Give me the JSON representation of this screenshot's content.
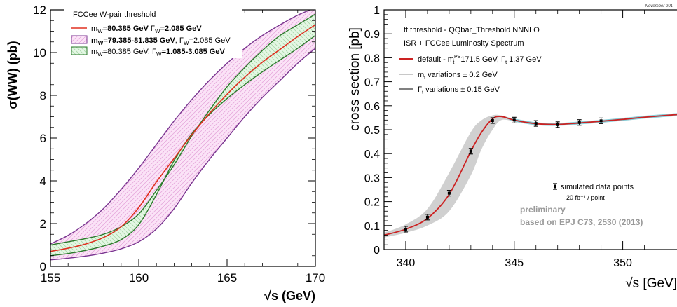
{
  "chart_data": [
    {
      "type": "area",
      "title": "",
      "xlabel": "√s (GeV)",
      "ylabel": "σ(WW) (pb)",
      "xlim": [
        155,
        170
      ],
      "ylim": [
        0,
        12
      ],
      "x_ticks": [
        "155",
        "160",
        "165",
        "170"
      ],
      "y_ticks": [
        "0",
        "2",
        "4",
        "6",
        "8",
        "10",
        "12"
      ],
      "grid": false,
      "legend": {
        "placement": "top-left",
        "title": "FCCee W-pair threshold",
        "entries": [
          {
            "label": "mW=80.385 GeV   ΓW=2.085 GeV",
            "color": "#e03020"
          },
          {
            "label": "mW=79.385-81.835 GeV,  ΓW=2.085 GeV",
            "color": "#7a3590"
          },
          {
            "label": "mW=80.385 GeV,  ΓW=1.085-3.085 GeV",
            "color": "#2a7a2a"
          }
        ]
      },
      "x": [
        155,
        156,
        157,
        158,
        159,
        160,
        161,
        162,
        163,
        164,
        165,
        166,
        167,
        168,
        169,
        170
      ],
      "series": [
        {
          "name": "mW=80.385 GeV   ΓW=2.085 GeV",
          "color": "#e03020",
          "values": [
            0.7,
            0.85,
            1.05,
            1.35,
            1.85,
            2.75,
            3.95,
            5.05,
            6.15,
            7.15,
            8.05,
            8.85,
            9.55,
            10.15,
            10.75,
            11.3
          ]
        },
        {
          "name": "mW=79.385-81.835 GeV upper",
          "color": "#7a3590",
          "values": [
            1.05,
            1.45,
            2.0,
            2.7,
            3.6,
            4.6,
            5.7,
            6.8,
            7.8,
            8.7,
            9.5,
            10.2,
            10.8,
            11.3,
            11.75,
            12.1
          ]
        },
        {
          "name": "mW=79.385-81.835 GeV lower",
          "color": "#7a3590",
          "values": [
            0.3,
            0.38,
            0.48,
            0.62,
            0.82,
            1.15,
            1.75,
            2.7,
            3.9,
            5.0,
            6.0,
            7.0,
            7.9,
            8.7,
            9.5,
            10.2
          ]
        },
        {
          "name": "ΓW=1.085-3.085 GeV upper",
          "color": "#2a7a2a",
          "values": [
            1.0,
            1.15,
            1.3,
            1.5,
            1.85,
            2.45,
            3.55,
            4.75,
            6.1,
            7.3,
            8.4,
            9.3,
            10.1,
            10.8,
            11.3,
            11.8
          ]
        },
        {
          "name": "ΓW=1.085-3.085 GeV lower",
          "color": "#2a7a2a",
          "values": [
            0.5,
            0.6,
            0.75,
            0.95,
            1.25,
            1.95,
            3.35,
            4.95,
            6.2,
            7.1,
            7.85,
            8.5,
            9.1,
            9.65,
            10.2,
            10.8
          ]
        }
      ]
    },
    {
      "type": "line",
      "title": "",
      "corner_note": "November 201",
      "xlabel": "√s [GeV]",
      "ylabel": "cross section [pb]",
      "xlim": [
        339,
        352.5
      ],
      "ylim": [
        0,
        1
      ],
      "x_ticks": [
        "340",
        "345",
        "350"
      ],
      "y_ticks": [
        "0",
        "0.1",
        "0.2",
        "0.3",
        "0.4",
        "0.5",
        "0.6",
        "0.7",
        "0.8",
        "0.9",
        "1"
      ],
      "grid": false,
      "legend": {
        "placement": "top-left",
        "lines": [
          "tt threshold - QQbar_Threshold NNNLO",
          "ISR + FCCee Luminosity Spectrum"
        ],
        "entries": [
          {
            "label": "default - mt PS 171.5 GeV, Γt 1.37 GeV",
            "color": "#cc2222"
          },
          {
            "label": "mt variations ± 0.2 GeV",
            "color": "#c8c8c8"
          },
          {
            "label": "Γt variations ± 0.15 GeV",
            "color": "#808080"
          }
        ]
      },
      "annotations": {
        "points_label": "simulated data points",
        "points_sub": "20 fb⁻¹ / point",
        "prelim": "preliminary",
        "ref": "based on EPJ C73, 2530 (2013)"
      },
      "x": [
        339,
        340,
        341,
        342,
        343,
        343.5,
        344,
        344.4,
        345,
        346,
        347,
        348,
        349,
        350,
        351,
        352.5
      ],
      "series": [
        {
          "name": "default",
          "color": "#cc2222",
          "values": [
            0.06,
            0.085,
            0.13,
            0.23,
            0.41,
            0.49,
            0.545,
            0.555,
            0.54,
            0.525,
            0.522,
            0.528,
            0.535,
            0.543,
            0.552,
            0.563
          ]
        },
        {
          "name": "mt band upper",
          "color": "#c8c8c8",
          "values": [
            0.07,
            0.105,
            0.17,
            0.32,
            0.49,
            0.54,
            0.56,
            0.56,
            0.545,
            0.53,
            0.527,
            0.532,
            0.538,
            0.548,
            0.556,
            0.567
          ]
        },
        {
          "name": "mt band lower",
          "color": "#c8c8c8",
          "values": [
            0.05,
            0.07,
            0.1,
            0.16,
            0.31,
            0.42,
            0.5,
            0.54,
            0.535,
            0.52,
            0.517,
            0.524,
            0.531,
            0.538,
            0.547,
            0.559
          ]
        }
      ],
      "points": [
        {
          "x": 340,
          "y": 0.085,
          "err": 0.005
        },
        {
          "x": 341,
          "y": 0.135,
          "err": 0.006
        },
        {
          "x": 342,
          "y": 0.235,
          "err": 0.007
        },
        {
          "x": 343,
          "y": 0.41,
          "err": 0.008
        },
        {
          "x": 344,
          "y": 0.538,
          "err": 0.008
        },
        {
          "x": 345,
          "y": 0.54,
          "err": 0.008
        },
        {
          "x": 346,
          "y": 0.526,
          "err": 0.008
        },
        {
          "x": 347,
          "y": 0.521,
          "err": 0.008
        },
        {
          "x": 348,
          "y": 0.53,
          "err": 0.008
        },
        {
          "x": 349,
          "y": 0.537,
          "err": 0.008
        }
      ]
    }
  ]
}
